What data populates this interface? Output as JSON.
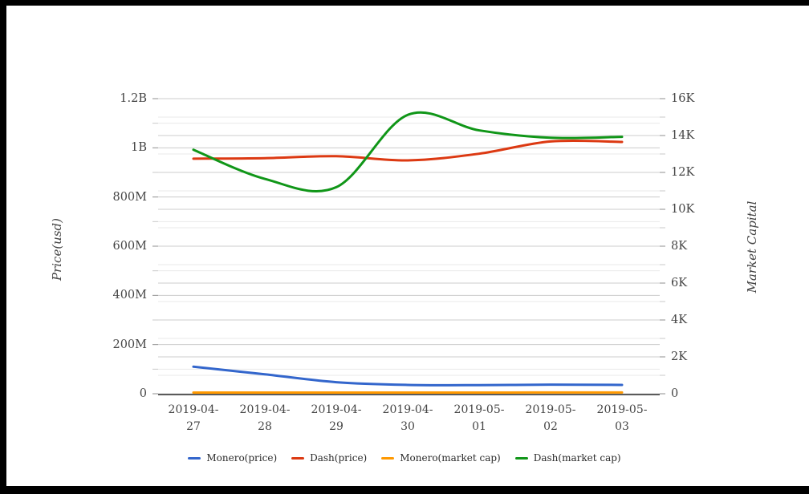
{
  "chart_data": {
    "type": "line",
    "smooth": true,
    "grid": true,
    "legend_position": "bottom",
    "categories": [
      "2019-04-27",
      "2019-04-28",
      "2019-04-29",
      "2019-04-30",
      "2019-05-01",
      "2019-05-02",
      "2019-05-03"
    ],
    "series": [
      {
        "name": "Monero(price)",
        "axis": "left",
        "color": "#3366cc",
        "values": [
          110000000,
          79000000,
          47000000,
          36000000,
          35000000,
          37000000,
          36000000
        ]
      },
      {
        "name": "Dash(price)",
        "axis": "left",
        "color": "#dc3912",
        "values": [
          956000000,
          958000000,
          966000000,
          949000000,
          976000000,
          1026000000,
          1024000000
        ]
      },
      {
        "name": "Monero(market cap)",
        "axis": "right",
        "color": "#ff9900",
        "values": [
          66,
          67,
          65,
          64,
          65,
          69,
          68
        ]
      },
      {
        "name": "Dash(market cap)",
        "axis": "right",
        "color": "#109618",
        "values": [
          13230,
          11650,
          11200,
          15120,
          14280,
          13880,
          13930
        ]
      }
    ],
    "left_axis": {
      "title": "Price(usd)",
      "range": [
        0,
        1200000000
      ],
      "tick_labels": [
        "1.2B",
        "1B",
        "800M",
        "600M",
        "400M",
        "200M",
        "0"
      ],
      "tick_values": [
        1200000000,
        1000000000,
        800000000,
        600000000,
        400000000,
        200000000,
        0
      ],
      "minor_step": 100000000
    },
    "right_axis": {
      "title": "Market Capital",
      "range": [
        0,
        16000
      ],
      "tick_labels": [
        "16K",
        "14K",
        "12K",
        "10K",
        "8K",
        "6K",
        "4K",
        "2K",
        "0"
      ],
      "tick_values": [
        16000,
        14000,
        12000,
        10000,
        8000,
        6000,
        4000,
        2000,
        0
      ],
      "minor_step": 1000
    }
  }
}
